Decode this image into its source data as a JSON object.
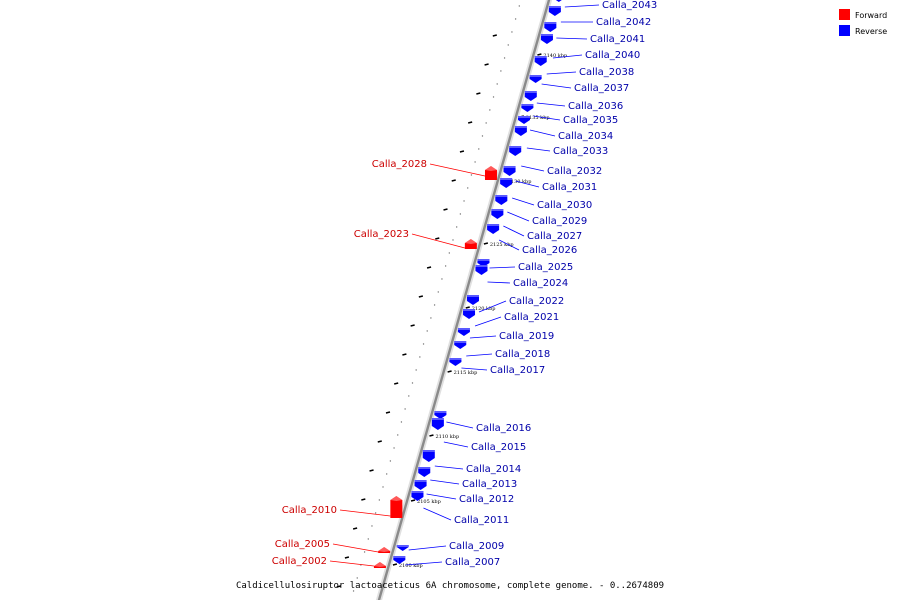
{
  "legend": {
    "forward_label": "Forward",
    "reverse_label": "Reverse",
    "forward_color": "#ff0000",
    "reverse_color": "#0000ff"
  },
  "caption": "Caldicellulosiruptor lactoaceticus 6A chromosome, complete genome. - 0..2674809",
  "ticks": [
    "2100 kbp",
    "2105 kbp",
    "2110 kbp",
    "2115 kbp",
    "2120 kbp",
    "2125 kbp",
    "2130 kbp",
    "2135 kbp",
    "2140 kbp"
  ],
  "genes": [
    {
      "name": "Calla_2043",
      "strand": "reverse"
    },
    {
      "name": "Calla_2042",
      "strand": "reverse"
    },
    {
      "name": "Calla_2041",
      "strand": "reverse"
    },
    {
      "name": "Calla_2040",
      "strand": "reverse"
    },
    {
      "name": "Calla_2038",
      "strand": "reverse"
    },
    {
      "name": "Calla_2037",
      "strand": "reverse"
    },
    {
      "name": "Calla_2036",
      "strand": "reverse"
    },
    {
      "name": "Calla_2035",
      "strand": "reverse"
    },
    {
      "name": "Calla_2034",
      "strand": "reverse"
    },
    {
      "name": "Calla_2033",
      "strand": "reverse"
    },
    {
      "name": "Calla_2032",
      "strand": "reverse"
    },
    {
      "name": "Calla_2031",
      "strand": "reverse"
    },
    {
      "name": "Calla_2030",
      "strand": "reverse"
    },
    {
      "name": "Calla_2029",
      "strand": "reverse"
    },
    {
      "name": "Calla_2027",
      "strand": "reverse"
    },
    {
      "name": "Calla_2026",
      "strand": "reverse"
    },
    {
      "name": "Calla_2025",
      "strand": "reverse"
    },
    {
      "name": "Calla_2024",
      "strand": "reverse"
    },
    {
      "name": "Calla_2022",
      "strand": "reverse"
    },
    {
      "name": "Calla_2021",
      "strand": "reverse"
    },
    {
      "name": "Calla_2019",
      "strand": "reverse"
    },
    {
      "name": "Calla_2018",
      "strand": "reverse"
    },
    {
      "name": "Calla_2017",
      "strand": "reverse"
    },
    {
      "name": "Calla_2016",
      "strand": "reverse"
    },
    {
      "name": "Calla_2015",
      "strand": "reverse"
    },
    {
      "name": "Calla_2014",
      "strand": "reverse"
    },
    {
      "name": "Calla_2013",
      "strand": "reverse"
    },
    {
      "name": "Calla_2012",
      "strand": "reverse"
    },
    {
      "name": "Calla_2011",
      "strand": "reverse"
    },
    {
      "name": "Calla_2009",
      "strand": "reverse"
    },
    {
      "name": "Calla_2007",
      "strand": "reverse"
    },
    {
      "name": "Calla_2028",
      "strand": "forward"
    },
    {
      "name": "Calla_2023",
      "strand": "forward"
    },
    {
      "name": "Calla_2010",
      "strand": "forward"
    },
    {
      "name": "Calla_2005",
      "strand": "forward"
    },
    {
      "name": "Calla_2002",
      "strand": "forward"
    }
  ]
}
